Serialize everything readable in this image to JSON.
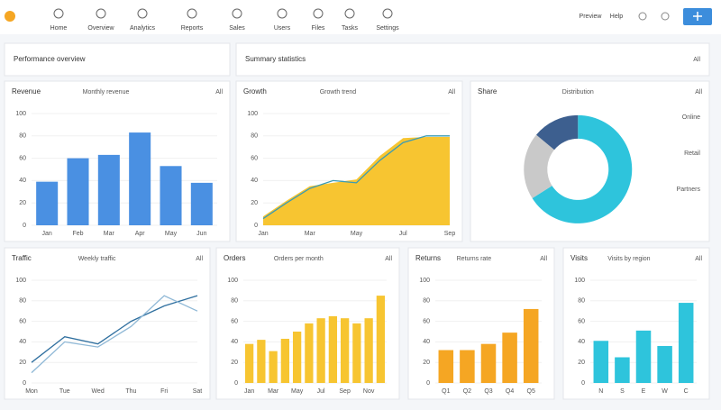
{
  "nav": [
    "Home",
    "Overview",
    "Analytics",
    "Reports",
    "Sales",
    "Users",
    "Files",
    "Tasks",
    "Settings"
  ],
  "header": {
    "preview": "Preview",
    "help": "Help"
  },
  "cards": [
    {
      "title": "Performance overview"
    },
    {
      "title": "Summary statistics",
      "corner": "All"
    }
  ],
  "panels": [
    {
      "type": "bar",
      "title": "Revenue",
      "subtitle": "Monthly revenue",
      "corner": "All",
      "color": "#4a90e2",
      "categories": [
        "Jan",
        "Feb",
        "Mar",
        "Apr",
        "May",
        "Jun"
      ],
      "values": [
        39,
        60,
        63,
        83,
        53,
        38
      ],
      "ylim": [
        0,
        100
      ],
      "yticks": [
        0,
        20,
        40,
        60,
        80,
        100
      ]
    },
    {
      "type": "area",
      "title": "Growth",
      "subtitle": "Growth trend",
      "corner": "All",
      "color": "#f7c531",
      "categories": [
        "Jan",
        null,
        "Mar",
        null,
        "May",
        null,
        "Jul",
        null,
        "Sep"
      ],
      "series": [
        {
          "color": "#f7c531",
          "values": [
            8,
            22,
            35,
            38,
            41,
            62,
            78,
            79,
            79
          ]
        },
        {
          "color": "#3a9bb5",
          "values": [
            6,
            20,
            33,
            40,
            38,
            58,
            74,
            80,
            80
          ]
        }
      ],
      "ylim": [
        0,
        100
      ],
      "yticks": [
        0,
        20,
        40,
        60,
        80,
        100
      ]
    },
    {
      "type": "donut",
      "title": "Share",
      "subtitle": "Distribution",
      "corner": "All",
      "categories": [
        "Online",
        "Retail",
        "Partners"
      ],
      "values": [
        66,
        20,
        14
      ],
      "colors": [
        "#2ec4dc",
        "#c9c9c9",
        "#3d5f8f"
      ]
    },
    {
      "type": "line",
      "title": "Traffic",
      "subtitle": "Weekly traffic",
      "corner": "All",
      "categories": [
        "Mon",
        "Tue",
        "Wed",
        "Thu",
        "Fri",
        "Sat"
      ],
      "series": [
        {
          "color": "#2f6f9f",
          "values": [
            20,
            45,
            38,
            60,
            75,
            85
          ]
        },
        {
          "color": "#8fb8d6",
          "values": [
            10,
            40,
            35,
            55,
            85,
            70
          ]
        }
      ],
      "ylim": [
        0,
        100
      ],
      "yticks": [
        0,
        20,
        40,
        60,
        80,
        100
      ]
    },
    {
      "type": "bar",
      "title": "Orders",
      "subtitle": "Orders per month",
      "corner": "All",
      "color": "#f7c531",
      "categories": [
        "Jan",
        null,
        "Mar",
        null,
        "May",
        null,
        "Jul",
        null,
        "Sep",
        null,
        "Nov",
        null
      ],
      "values": [
        38,
        42,
        31,
        43,
        50,
        58,
        63,
        65,
        63,
        58,
        63,
        85
      ],
      "ylim": [
        0,
        100
      ],
      "yticks": [
        0,
        20,
        40,
        60,
        80,
        100
      ]
    },
    {
      "type": "bar",
      "title": "Returns",
      "subtitle": "Returns rate",
      "corner": "All",
      "color": "#f5a623",
      "categories": [
        "Q1",
        "Q2",
        "Q3",
        "Q4",
        "Q5"
      ],
      "values": [
        32,
        32,
        38,
        49,
        72
      ],
      "ylim": [
        0,
        100
      ],
      "yticks": [
        0,
        20,
        40,
        60,
        80,
        100
      ]
    },
    {
      "type": "bar",
      "title": "Visits",
      "subtitle": "Visits by region",
      "corner": "All",
      "color": "#2ec4dc",
      "categories": [
        "N",
        "S",
        "E",
        "W",
        "C"
      ],
      "values": [
        41,
        25,
        51,
        36,
        78
      ],
      "ylim": [
        0,
        100
      ],
      "yticks": [
        0,
        20,
        40,
        60,
        80,
        100
      ]
    }
  ]
}
